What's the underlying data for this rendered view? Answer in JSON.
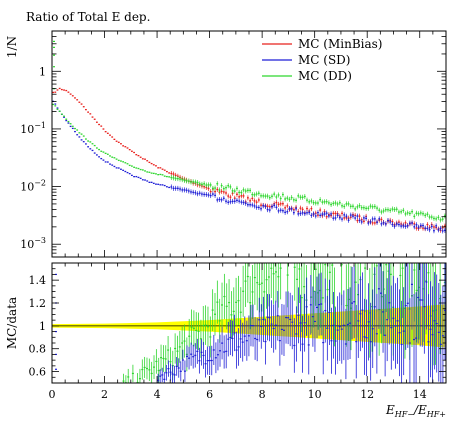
{
  "chart_data": {
    "type": "scatter",
    "title": "Ratio of Total E dep.",
    "xlabel": "E_{HF−}/E_{HF+}",
    "ylabel_top": "1/N",
    "ylabel_bottom": "MC/data",
    "xlim": [
      0,
      15
    ],
    "ylim_top": [
      0.0006,
      5
    ],
    "yscale_top": "log",
    "ylim_bottom": [
      0.5,
      1.55
    ],
    "x_ticks": [
      0,
      2,
      4,
      6,
      8,
      10,
      12,
      14
    ],
    "y_ticks_top": [
      "10^{-3}",
      "10^{-2}",
      "10^{-1}",
      "1"
    ],
    "y_ticks_top_values": [
      0.001,
      0.01,
      0.1,
      1
    ],
    "y_ticks_bottom": [
      0.6,
      0.8,
      1.0,
      1.2,
      1.4
    ],
    "legend_position": "top-right",
    "colors": {
      "minbias": "#e8201c",
      "sd": "#1f1fd6",
      "dd": "#2ed62e",
      "band": "#ffff00"
    },
    "series_top": [
      {
        "name": "MC (MinBias)",
        "color": "#e8201c",
        "x": [
          0.05,
          0.3,
          0.6,
          1,
          1.5,
          2,
          2.5,
          3,
          3.5,
          4,
          5,
          6,
          7,
          8,
          9,
          10,
          11,
          12,
          13,
          14,
          15
        ],
        "y": [
          0.42,
          0.5,
          0.45,
          0.31,
          0.17,
          0.095,
          0.06,
          0.042,
          0.03,
          0.022,
          0.0135,
          0.0092,
          0.0067,
          0.0052,
          0.0043,
          0.0036,
          0.0031,
          0.0027,
          0.0024,
          0.0021,
          0.0019
        ]
      },
      {
        "name": "MC (SD)",
        "color": "#1f1fd6",
        "x": [
          0.05,
          0.3,
          0.6,
          1,
          1.5,
          2,
          2.5,
          3,
          3.5,
          4,
          5,
          6,
          7,
          8,
          9,
          10,
          11,
          12,
          13,
          14,
          15
        ],
        "y": [
          0.3,
          0.2,
          0.13,
          0.075,
          0.043,
          0.028,
          0.021,
          0.016,
          0.013,
          0.011,
          0.0087,
          0.0069,
          0.0056,
          0.0046,
          0.0039,
          0.0034,
          0.003,
          0.0026,
          0.0023,
          0.002,
          0.0018
        ]
      },
      {
        "name": "MC (DD)",
        "color": "#2ed62e",
        "x": [
          0.05,
          0.3,
          0.6,
          1,
          1.5,
          2,
          2.5,
          3,
          3.5,
          4,
          5,
          6,
          7,
          8,
          9,
          10,
          11,
          12,
          13,
          14,
          15
        ],
        "y": [
          0.27,
          0.2,
          0.14,
          0.09,
          0.056,
          0.038,
          0.029,
          0.023,
          0.019,
          0.0165,
          0.0128,
          0.0105,
          0.0088,
          0.0075,
          0.0065,
          0.0057,
          0.0049,
          0.0043,
          0.0037,
          0.0032,
          0.0028
        ]
      }
    ],
    "series_ratio": [
      {
        "color": "#2ed62e",
        "x": [
          2.5,
          3,
          3.5,
          4,
          4.5,
          5,
          5.5,
          6,
          6.5,
          7,
          7.5,
          8,
          9,
          10,
          11,
          12,
          13,
          14,
          15
        ],
        "y": [
          0.45,
          0.52,
          0.58,
          0.65,
          0.72,
          0.82,
          0.92,
          1.02,
          1.12,
          1.22,
          1.33,
          1.45,
          1.46,
          1.42,
          1.4,
          1.39,
          1.37,
          1.36,
          1.35
        ]
      },
      {
        "color": "#1f1fd6",
        "x": [
          4,
          4.5,
          5,
          5.5,
          6,
          6.5,
          7,
          7.5,
          8,
          8.5,
          9,
          10,
          11,
          12,
          13,
          14,
          15
        ],
        "y": [
          0.55,
          0.6,
          0.66,
          0.72,
          0.77,
          0.82,
          0.86,
          0.9,
          0.93,
          0.96,
          0.99,
          1.02,
          1.05,
          1.08,
          1.1,
          1.12,
          1.13
        ]
      }
    ],
    "band": {
      "x": [
        0,
        2,
        4,
        6,
        8,
        10,
        12,
        14,
        15
      ],
      "lower": [
        0.985,
        0.98,
        0.97,
        0.95,
        0.92,
        0.89,
        0.86,
        0.83,
        0.81
      ],
      "upper": [
        1.015,
        1.02,
        1.03,
        1.05,
        1.08,
        1.11,
        1.14,
        1.17,
        1.19
      ]
    }
  }
}
